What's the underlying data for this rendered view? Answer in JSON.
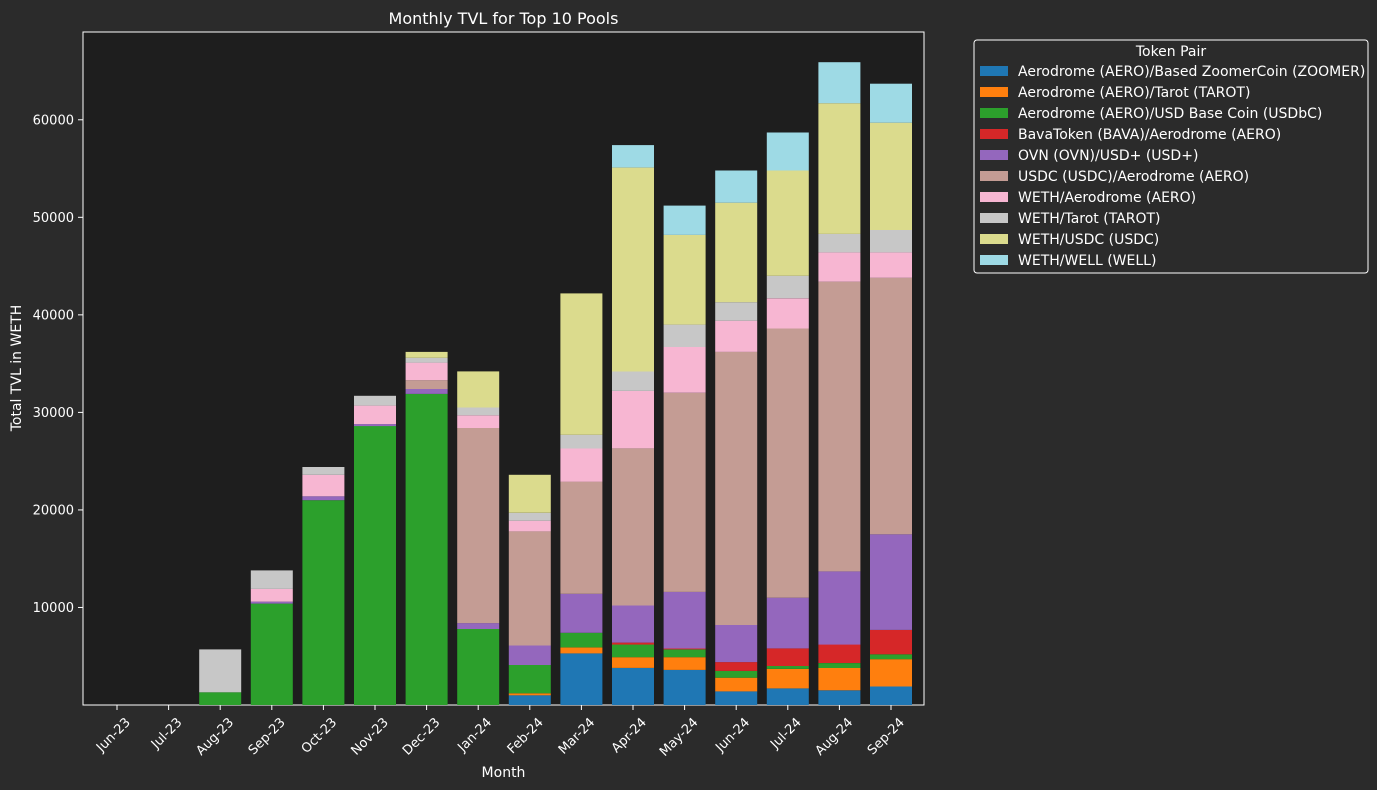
{
  "chart_data": {
    "type": "bar",
    "stacked": true,
    "title": "Monthly TVL for Top 10 Pools",
    "xlabel": "Month",
    "ylabel": "Total TVL in WETH",
    "ylim": [
      0,
      69000
    ],
    "yticks": [
      10000,
      20000,
      30000,
      40000,
      50000,
      60000
    ],
    "grid": false,
    "legend": {
      "title": "Token Pair",
      "placement": "outside top-right"
    },
    "categories": [
      "Jun-23",
      "Jul-23",
      "Aug-23",
      "Sep-23",
      "Oct-23",
      "Nov-23",
      "Dec-23",
      "Jan-24",
      "Feb-24",
      "Mar-24",
      "Apr-24",
      "May-24",
      "Jun-24",
      "Jul-24",
      "Aug-24",
      "Sep-24"
    ],
    "series": [
      {
        "name": "Aerodrome (AERO)/Based ZoomerCoin (ZOOMER)",
        "color": "#1f77b4",
        "values": [
          0,
          0,
          0,
          0,
          0,
          0,
          0,
          0,
          1000,
          5300,
          3800,
          3600,
          1400,
          1700,
          1500,
          1900
        ]
      },
      {
        "name": "Aerodrome (AERO)/Tarot (TAROT)",
        "color": "#ff7f0e",
        "values": [
          0,
          0,
          0,
          0,
          0,
          0,
          0,
          0,
          200,
          600,
          1100,
          1300,
          1400,
          2000,
          2300,
          2800
        ]
      },
      {
        "name": "Aerodrome (AERO)/USD Base Coin (USDbC)",
        "color": "#2ca02c",
        "values": [
          0,
          0,
          1300,
          10400,
          21000,
          28600,
          31900,
          7800,
          2900,
          1500,
          1300,
          800,
          700,
          300,
          500,
          500
        ]
      },
      {
        "name": "BavaToken (BAVA)/Aerodrome (AERO)",
        "color": "#d62728",
        "values": [
          0,
          0,
          0,
          0,
          0,
          0,
          0,
          0,
          0,
          0,
          200,
          100,
          900,
          1800,
          1900,
          2500
        ]
      },
      {
        "name": "OVN (OVN)/USD+ (USD+)",
        "color": "#9467bd",
        "values": [
          0,
          0,
          0,
          200,
          400,
          200,
          500,
          600,
          2000,
          4000,
          3800,
          5800,
          3800,
          5200,
          7500,
          9800
        ]
      },
      {
        "name": "USDC (USDC)/Aerodrome (AERO)",
        "color": "#c49c94",
        "values": [
          0,
          0,
          0,
          0,
          0,
          0,
          900,
          20000,
          11700,
          11500,
          16100,
          20400,
          28000,
          27600,
          29700,
          26300
        ]
      },
      {
        "name": "WETH/Aerodrome (AERO)",
        "color": "#f7b6d2",
        "values": [
          0,
          0,
          0,
          1300,
          2200,
          1900,
          1800,
          1300,
          1100,
          3400,
          5900,
          4700,
          3200,
          3100,
          3000,
          2600
        ]
      },
      {
        "name": "WETH/Tarot (TAROT)",
        "color": "#c7c7c7",
        "values": [
          0,
          0,
          4400,
          1900,
          800,
          1000,
          500,
          800,
          800,
          1400,
          2000,
          2300,
          1900,
          2300,
          1900,
          2300
        ]
      },
      {
        "name": "WETH/USDC (USDC)",
        "color": "#dbdb8d",
        "values": [
          0,
          0,
          0,
          0,
          0,
          0,
          600,
          3700,
          3900,
          14500,
          20900,
          9200,
          10200,
          10800,
          13400,
          11000
        ]
      },
      {
        "name": "WETH/WELL (WELL)",
        "color": "#9edae5",
        "values": [
          0,
          0,
          0,
          0,
          0,
          0,
          0,
          0,
          0,
          0,
          2300,
          3000,
          3300,
          3900,
          4200,
          4000
        ]
      }
    ]
  }
}
